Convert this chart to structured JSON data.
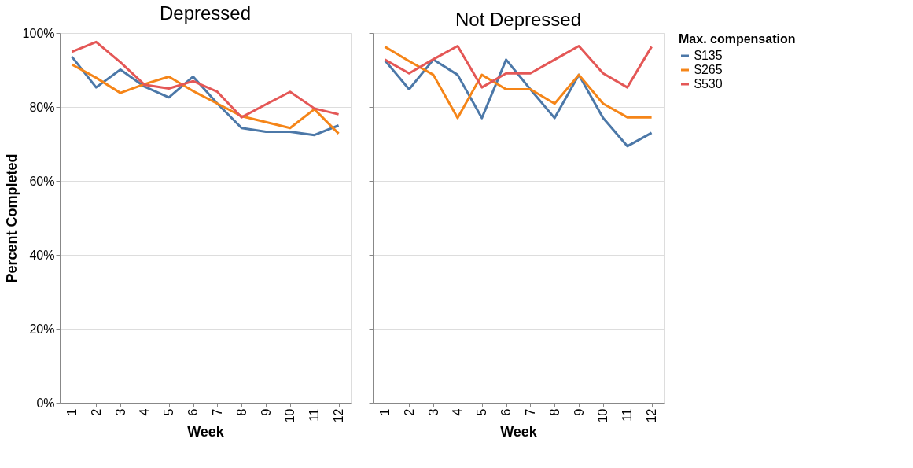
{
  "chart_data": [
    {
      "type": "line",
      "title": "Depressed",
      "xlabel": "Week",
      "ylabel": "Percent Completed",
      "categories": [
        "1",
        "2",
        "3",
        "4",
        "5",
        "6",
        "7",
        "8",
        "9",
        "10",
        "11",
        "12"
      ],
      "series": [
        {
          "name": "$135",
          "color": "#4c78a8",
          "values": [
            93.6,
            85.3,
            90.1,
            85.5,
            82.6,
            88.2,
            80.9,
            74.3,
            73.3,
            73.3,
            72.4,
            75.0
          ]
        },
        {
          "name": "$265",
          "color": "#f58518",
          "values": [
            91.5,
            87.9,
            83.8,
            86.2,
            88.2,
            84.3,
            80.9,
            77.5,
            75.9,
            74.3,
            79.4,
            72.8
          ]
        },
        {
          "name": "$530",
          "color": "#e45756",
          "values": [
            94.9,
            97.6,
            92.1,
            86.0,
            85.0,
            87.0,
            84.1,
            77.2,
            80.7,
            84.1,
            79.6,
            78.0
          ]
        }
      ],
      "ylim": [
        0,
        100
      ],
      "yticks": [
        {
          "value": 0,
          "label": "0%"
        },
        {
          "value": 20,
          "label": "20%"
        },
        {
          "value": 40,
          "label": "40%"
        },
        {
          "value": 60,
          "label": "60%"
        },
        {
          "value": 80,
          "label": "80%"
        },
        {
          "value": 100,
          "label": "100%"
        }
      ],
      "grid": "y",
      "legend": "right",
      "legend_title": "Max. compensation"
    },
    {
      "type": "line",
      "title": "Not Depressed",
      "xlabel": "Week",
      "categories": [
        "1",
        "2",
        "3",
        "4",
        "5",
        "6",
        "7",
        "8",
        "9",
        "10",
        "11",
        "12"
      ],
      "series": [
        {
          "name": "$135",
          "color": "#4c78a8",
          "values": [
            92.6,
            84.8,
            92.8,
            88.7,
            77.0,
            92.8,
            84.8,
            77.0,
            88.7,
            77.0,
            69.4,
            73.0
          ]
        },
        {
          "name": "$265",
          "color": "#f58518",
          "values": [
            96.3,
            92.4,
            88.7,
            77.0,
            88.7,
            84.8,
            84.8,
            80.9,
            88.7,
            80.9,
            77.2,
            77.2
          ]
        },
        {
          "name": "$530",
          "color": "#e45756",
          "values": [
            92.8,
            89.1,
            92.9,
            96.5,
            85.3,
            89.1,
            89.1,
            92.8,
            96.5,
            89.1,
            85.3,
            96.3
          ]
        }
      ],
      "ylim": [
        0,
        100
      ],
      "yticks": [
        0,
        20,
        40,
        60,
        80,
        100
      ],
      "grid": "y",
      "legend": "right",
      "tick_labels": "x"
    }
  ]
}
